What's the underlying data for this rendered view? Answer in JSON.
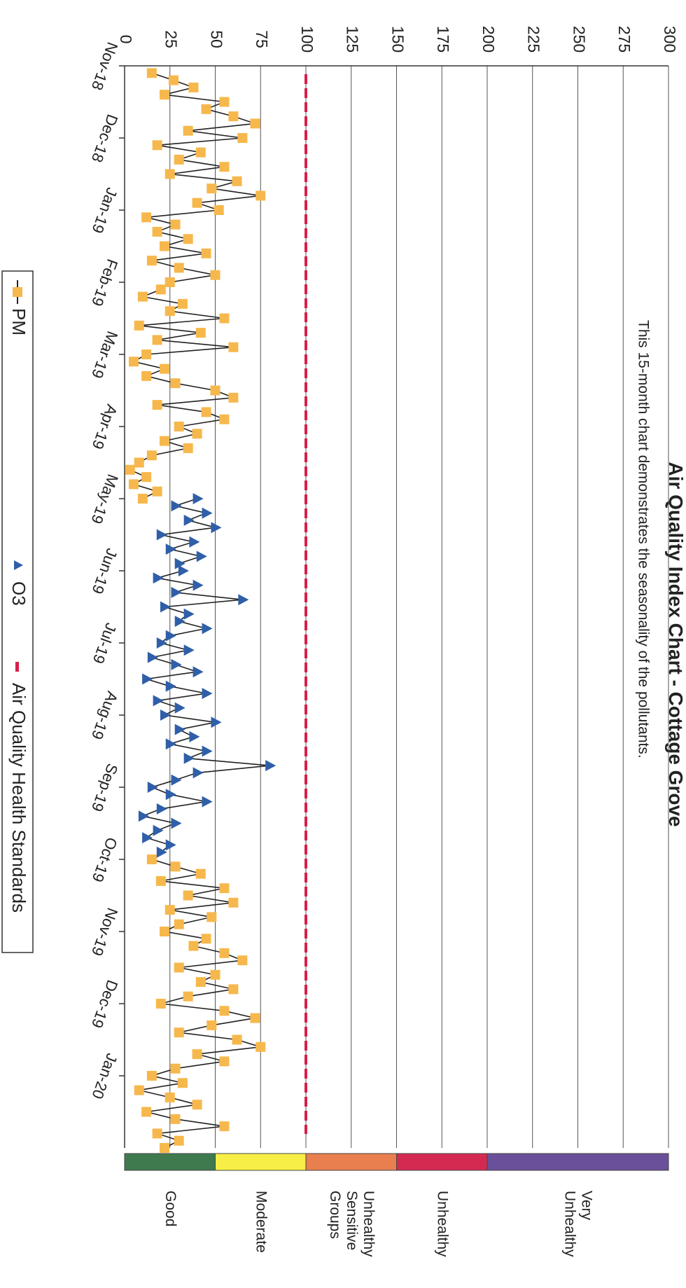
{
  "chart_data": {
    "type": "line",
    "title": "Air Quality Index Chart - Cottage Grove",
    "subtitle": "This 15-month chart demonstrates the seasonality of the pollutants.",
    "xlim": [
      0,
      15
    ],
    "xticks": [
      {
        "value": 0,
        "label": "Nov-18"
      },
      {
        "value": 1,
        "label": "Dec-18"
      },
      {
        "value": 2,
        "label": "Jan-19"
      },
      {
        "value": 3,
        "label": "Feb-19"
      },
      {
        "value": 4,
        "label": "Mar-19"
      },
      {
        "value": 5,
        "label": "Apr-19"
      },
      {
        "value": 6,
        "label": "May-19"
      },
      {
        "value": 7,
        "label": "Jun-19"
      },
      {
        "value": 8,
        "label": "Jul-19"
      },
      {
        "value": 9,
        "label": "Aug-19"
      },
      {
        "value": 10,
        "label": "Sep-19"
      },
      {
        "value": 11,
        "label": "Oct-19"
      },
      {
        "value": 12,
        "label": "Nov-19"
      },
      {
        "value": 13,
        "label": "Dec-19"
      },
      {
        "value": 14,
        "label": "Jan-20"
      }
    ],
    "ylim": [
      0,
      300
    ],
    "yticks": [
      0,
      25,
      50,
      75,
      100,
      125,
      150,
      175,
      200,
      225,
      250,
      275,
      300
    ],
    "grid": true,
    "line_color": "#222222",
    "series": [
      {
        "name": "PM",
        "color": "#f6b84c",
        "marker": "square",
        "x": [
          0.1,
          0.2,
          0.3,
          0.4,
          0.5,
          0.6,
          0.7,
          0.8,
          0.9,
          1,
          1.1,
          1.2,
          1.3,
          1.4,
          1.5,
          1.6,
          1.7,
          1.8,
          1.9,
          2,
          2.1,
          2.2,
          2.3,
          2.4,
          2.5,
          2.6,
          2.7,
          2.8,
          2.9,
          3,
          3.1,
          3.2,
          3.3,
          3.4,
          3.5,
          3.6,
          3.7,
          3.8,
          3.9,
          4,
          4.1,
          4.2,
          4.3,
          4.4,
          4.5,
          4.6,
          4.7,
          4.8,
          4.9,
          5,
          5.1,
          5.2,
          5.3,
          5.4,
          5.5,
          5.6,
          5.7,
          5.8,
          5.9,
          6,
          8.5,
          11,
          11.1,
          11.2,
          11.3,
          11.4,
          11.5,
          11.6,
          11.7,
          11.8,
          11.9,
          12,
          12.1,
          12.2,
          12.3,
          12.4,
          12.5,
          12.6,
          12.7,
          12.8,
          12.9,
          13,
          13.1,
          13.2,
          13.3,
          13.4,
          13.5,
          13.6,
          13.7,
          13.8,
          13.9,
          14,
          14.1,
          14.2,
          14.3,
          14.4,
          14.5,
          14.6,
          14.7,
          14.8,
          14.9,
          15
        ],
        "values": [
          15,
          27,
          38,
          22,
          55,
          45,
          60,
          72,
          35,
          65,
          18,
          42,
          30,
          55,
          25,
          62,
          48,
          75,
          40,
          52,
          12,
          28,
          18,
          35,
          22,
          45,
          15,
          30,
          50,
          25,
          20,
          10,
          32,
          25,
          55,
          8,
          42,
          18,
          60,
          12,
          5,
          22,
          12,
          28,
          50,
          60,
          18,
          45,
          55,
          30,
          40,
          22,
          35,
          15,
          8,
          3,
          12,
          5,
          18,
          10,
          null,
          15,
          28,
          42,
          20,
          55,
          35,
          60,
          25,
          48,
          30,
          22,
          45,
          38,
          55,
          65,
          30,
          50,
          42,
          60,
          35,
          20,
          55,
          72,
          48,
          30,
          62,
          75,
          40,
          55,
          28,
          15,
          32,
          8,
          25,
          40,
          12,
          28,
          55,
          18,
          30,
          22
        ]
      },
      {
        "name": "O3",
        "color": "#2f5fa8",
        "marker": "triangle",
        "x": [
          6,
          6.1,
          6.2,
          6.3,
          6.4,
          6.5,
          6.6,
          6.7,
          6.8,
          6.9,
          7,
          7.1,
          7.2,
          7.3,
          7.4,
          7.5,
          7.6,
          7.7,
          7.8,
          7.9,
          8,
          8.1,
          8.2,
          8.3,
          8.4,
          8.5,
          8.6,
          8.7,
          8.8,
          8.9,
          9,
          9.1,
          9.2,
          9.3,
          9.4,
          9.5,
          9.6,
          9.7,
          9.8,
          9.9,
          10,
          10.1,
          10.2,
          10.3,
          10.4,
          10.5,
          10.6,
          10.7,
          10.8,
          10.9
        ],
        "values": [
          40,
          28,
          45,
          35,
          50,
          20,
          38,
          25,
          42,
          30,
          32,
          18,
          40,
          28,
          65,
          22,
          35,
          30,
          45,
          25,
          20,
          35,
          15,
          28,
          40,
          12,
          25,
          45,
          18,
          30,
          22,
          50,
          30,
          38,
          25,
          45,
          35,
          80,
          40,
          28,
          15,
          25,
          45,
          20,
          10,
          28,
          18,
          12,
          25,
          20
        ]
      },
      {
        "name": "Air Quality Health Standards",
        "color": "#d81f4a",
        "marker": "dash",
        "values": [
          100
        ]
      }
    ],
    "aqi_scale": [
      {
        "label": "Good",
        "from": 0,
        "to": 50,
        "color": "#3f7a4f"
      },
      {
        "label": "Moderate",
        "from": 50,
        "to": 100,
        "color": "#f7ef45"
      },
      {
        "label": "Unhealthy Sensitive Groups",
        "from": 100,
        "to": 150,
        "color": "#e97f4f"
      },
      {
        "label": "Unhealthy",
        "from": 150,
        "to": 200,
        "color": "#d42a52"
      },
      {
        "label": "Very Unhealthy",
        "from": 200,
        "to": 300,
        "color": "#6a4f9a"
      }
    ]
  }
}
